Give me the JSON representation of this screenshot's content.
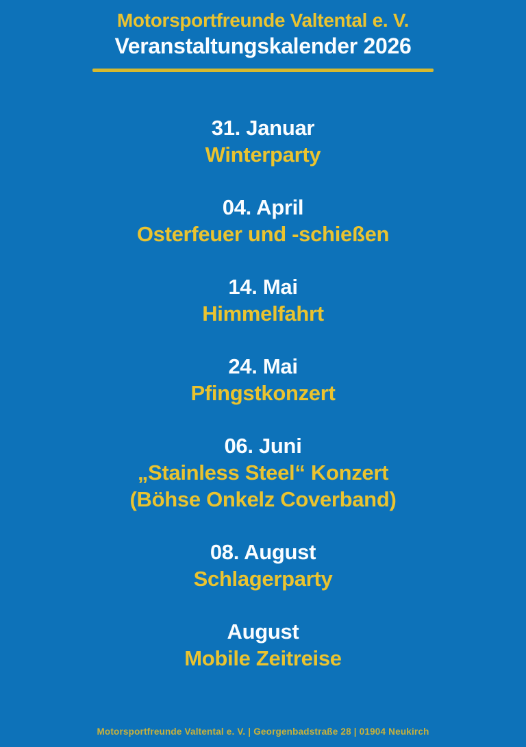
{
  "colors": {
    "background_blue": "#0d72b9",
    "accent_yellow": "#eac32f",
    "text_white": "#fafdff"
  },
  "header": {
    "club_name": "Motorsportfreunde Valtental e. V.",
    "title": "Veranstaltungskalender 2026"
  },
  "events": [
    {
      "date": "31. Januar",
      "name": "Winterparty"
    },
    {
      "date": "04. April",
      "name": "Osterfeuer und -schießen"
    },
    {
      "date": "14. Mai",
      "name": "Himmelfahrt"
    },
    {
      "date": "24. Mai",
      "name": "Pfingstkonzert"
    },
    {
      "date": "06. Juni",
      "name": "„Stainless Steel“ Konzert",
      "name2": "(Böhse Onkelz Coverband)"
    },
    {
      "date": "08. August",
      "name": "Schlagerparty"
    },
    {
      "date": "August",
      "name": "Mobile Zeitreise"
    }
  ],
  "footer": {
    "text": "Motorsportfreunde Valtental e. V. | Georgenbadstraße 28 | 01904 Neukirch"
  }
}
